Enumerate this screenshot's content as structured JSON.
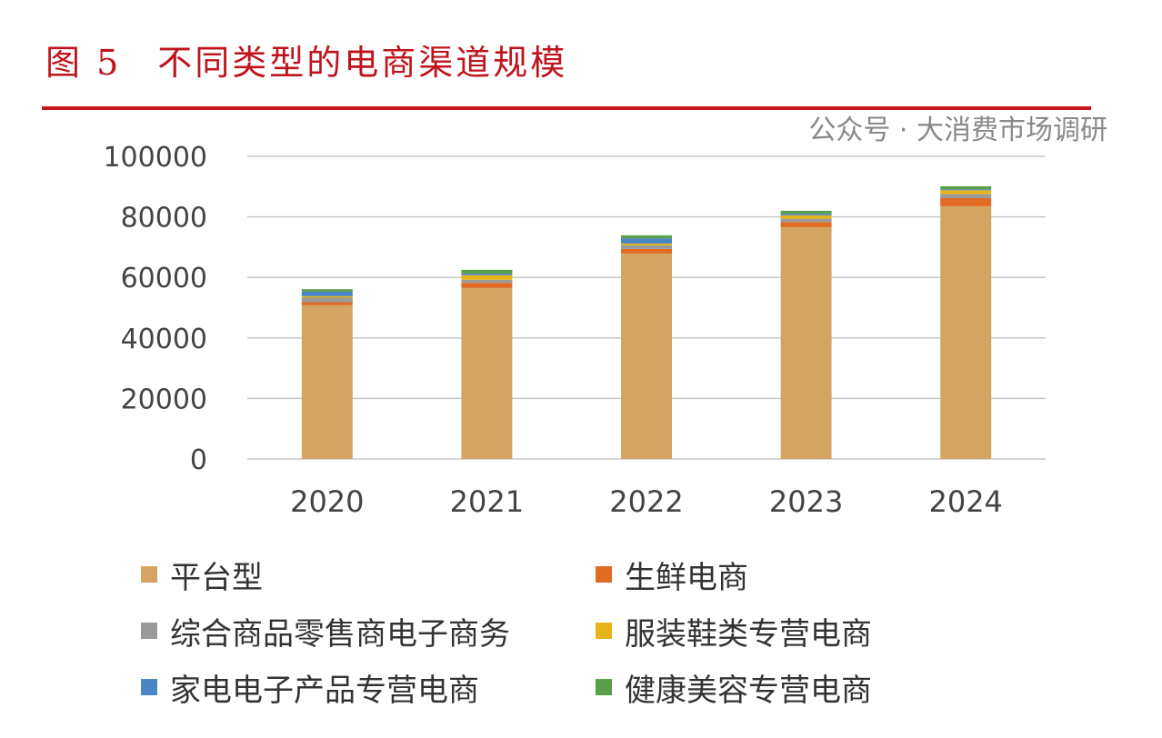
{
  "title": {
    "figure": "图 5",
    "text": "不同类型的电商渠道规模"
  },
  "watermark": "公众号 · 大消费市场调研",
  "chart_data": {
    "type": "bar",
    "stacked": true,
    "title": "不同类型的电商渠道规模",
    "categories": [
      "2020",
      "2021",
      "2022",
      "2023",
      "2024"
    ],
    "ylim": [
      0,
      100000
    ],
    "yticks": [
      0,
      20000,
      40000,
      60000,
      80000,
      100000
    ],
    "grid": true,
    "legend_position": "bottom",
    "series": [
      {
        "name": "平台型",
        "color": "#d4a463",
        "values": [
          50800,
          56500,
          67900,
          76600,
          83500
        ]
      },
      {
        "name": "生鲜电商",
        "color": "#e06b23",
        "values": [
          1000,
          1700,
          1500,
          1700,
          2700
        ]
      },
      {
        "name": "综合商品零售商电子商务",
        "color": "#9a9a9a",
        "values": [
          1500,
          1000,
          1200,
          1100,
          1300
        ]
      },
      {
        "name": "服装鞋类专营电商",
        "color": "#e6b419",
        "values": [
          500,
          1500,
          600,
          1100,
          1300
        ]
      },
      {
        "name": "家电电子产品专营电商",
        "color": "#4a86c5",
        "values": [
          1500,
          500,
          1700,
          500,
          300
        ]
      },
      {
        "name": "健康美容专营电商",
        "color": "#5a9e4a",
        "values": [
          800,
          1300,
          1000,
          1000,
          1000
        ]
      }
    ]
  }
}
